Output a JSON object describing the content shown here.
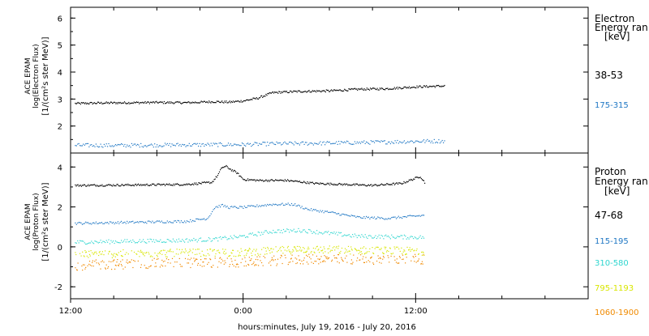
{
  "chart_data": [
    {
      "type": "scatter",
      "panel": "electron",
      "ylabel_lines": [
        "ACE EPAM",
        "log(Electron Flux)",
        "[1/(cm²s ster MeV)]"
      ],
      "ylim": [
        1.0,
        6.4
      ],
      "yticks": [
        2,
        3,
        4,
        5,
        6
      ],
      "xlim_hours_from_start": [
        0,
        36
      ],
      "legend_title_lines": [
        "Electron",
        "Energy ran",
        "[keV]"
      ],
      "series": [
        {
          "name": "38-53",
          "color": "#000000",
          "x": [
            0.3,
            2,
            4,
            6,
            8,
            10,
            11,
            12,
            13,
            14,
            15,
            16,
            18,
            20,
            22,
            24,
            26
          ],
          "values": [
            2.85,
            2.87,
            2.88,
            2.89,
            2.88,
            2.92,
            2.9,
            2.95,
            3.05,
            3.25,
            3.28,
            3.3,
            3.32,
            3.38,
            3.4,
            3.47,
            3.5
          ],
          "jitter": 0.04
        },
        {
          "name": "175-315",
          "color": "#1f77c4",
          "x": [
            0.3,
            4,
            8,
            12,
            14,
            16,
            20,
            24,
            26
          ],
          "values": [
            1.3,
            1.3,
            1.32,
            1.33,
            1.36,
            1.37,
            1.4,
            1.45,
            1.46
          ],
          "jitter": 0.07
        }
      ]
    },
    {
      "type": "scatter",
      "panel": "proton",
      "ylabel_lines": [
        "ACE EPAM",
        "log(Proton Flux)",
        "[1/(cm²s ster MeV)]"
      ],
      "ylim": [
        -2.6,
        4.7
      ],
      "yticks": [
        -2,
        0,
        2,
        4
      ],
      "xlim_hours_from_start": [
        0,
        36
      ],
      "x_tick_labels": [
        "12:00",
        "0:00",
        "12:00"
      ],
      "x_tick_label_hours": [
        0,
        12,
        24
      ],
      "xlabel": "hours:minutes, July 19, 2016 - July 20, 2016",
      "legend_title_lines": [
        "Proton",
        "Energy ran",
        "[keV]"
      ],
      "series": [
        {
          "name": "47-68",
          "color": "#000000",
          "x": [
            0.3,
            4,
            8,
            9.8,
            10.2,
            10.5,
            10.8,
            11.1,
            11.5,
            12,
            13,
            15,
            17,
            19,
            21,
            23,
            24.3,
            24.6
          ],
          "values": [
            3.1,
            3.12,
            3.15,
            3.25,
            3.6,
            4.0,
            4.05,
            3.9,
            3.75,
            3.4,
            3.35,
            3.35,
            3.2,
            3.15,
            3.1,
            3.2,
            3.55,
            3.25
          ],
          "jitter": 0.05
        },
        {
          "name": "115-195",
          "color": "#1f77c4",
          "x": [
            0.3,
            4,
            8,
            9.5,
            10,
            10.5,
            11,
            12,
            14,
            15.5,
            16.5,
            18,
            20,
            22,
            24.6
          ],
          "values": [
            1.2,
            1.25,
            1.3,
            1.45,
            2.0,
            2.1,
            2.0,
            2.0,
            2.15,
            2.15,
            1.9,
            1.75,
            1.5,
            1.45,
            1.6
          ],
          "jitter": 0.06
        },
        {
          "name": "310-580",
          "color": "#2fd6cf",
          "x": [
            0.3,
            4,
            8,
            10,
            12,
            14,
            16,
            18,
            20,
            24.6
          ],
          "values": [
            0.25,
            0.3,
            0.35,
            0.4,
            0.55,
            0.8,
            0.85,
            0.7,
            0.55,
            0.5
          ],
          "jitter": 0.1
        },
        {
          "name": "795-1193",
          "color": "#d8e600",
          "x": [
            0.3,
            6,
            12,
            16,
            20,
            24.6
          ],
          "values": [
            -0.35,
            -0.3,
            -0.25,
            -0.1,
            -0.15,
            -0.2
          ],
          "jitter": 0.2
        },
        {
          "name": "1060-1900",
          "color": "#f08a00",
          "x": [
            0.3,
            6,
            12,
            16,
            20,
            24.6
          ],
          "values": [
            -0.9,
            -0.8,
            -0.75,
            -0.6,
            -0.6,
            -0.6
          ],
          "jitter": 0.25
        }
      ]
    }
  ]
}
